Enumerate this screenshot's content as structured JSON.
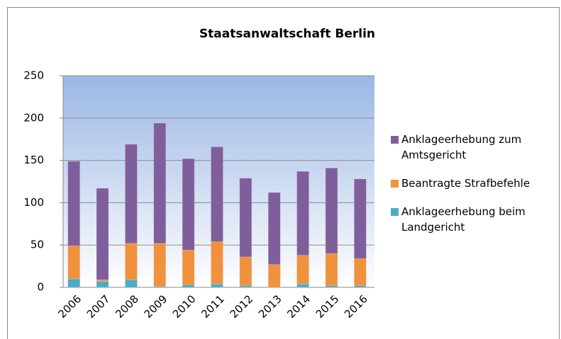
{
  "chart_data": {
    "type": "stacked_bar",
    "title": "Staatsanwaltschaft Berlin",
    "categories": [
      "2006",
      "2007",
      "2008",
      "2009",
      "2010",
      "2011",
      "2012",
      "2013",
      "2014",
      "2015",
      "2016"
    ],
    "series": [
      {
        "name": "Anklageerhebung beim Landgericht",
        "color": "#4bacc6",
        "values": [
          10,
          7,
          9,
          1,
          3,
          4,
          2,
          0,
          4,
          2,
          2
        ]
      },
      {
        "name": "Beantragte Strafbefehle",
        "color": "#f0913e",
        "values": [
          39,
          2,
          43,
          51,
          41,
          50,
          34,
          27,
          34,
          38,
          32
        ]
      },
      {
        "name": "Anklageerhebung zum Amtsgericht",
        "color": "#7f5f9b",
        "values": [
          100,
          108,
          117,
          142,
          108,
          112,
          93,
          85,
          99,
          101,
          94
        ]
      }
    ],
    "ylim": [
      0,
      250
    ],
    "yticks": [
      0,
      50,
      100,
      150,
      200,
      250
    ],
    "grid": true
  }
}
